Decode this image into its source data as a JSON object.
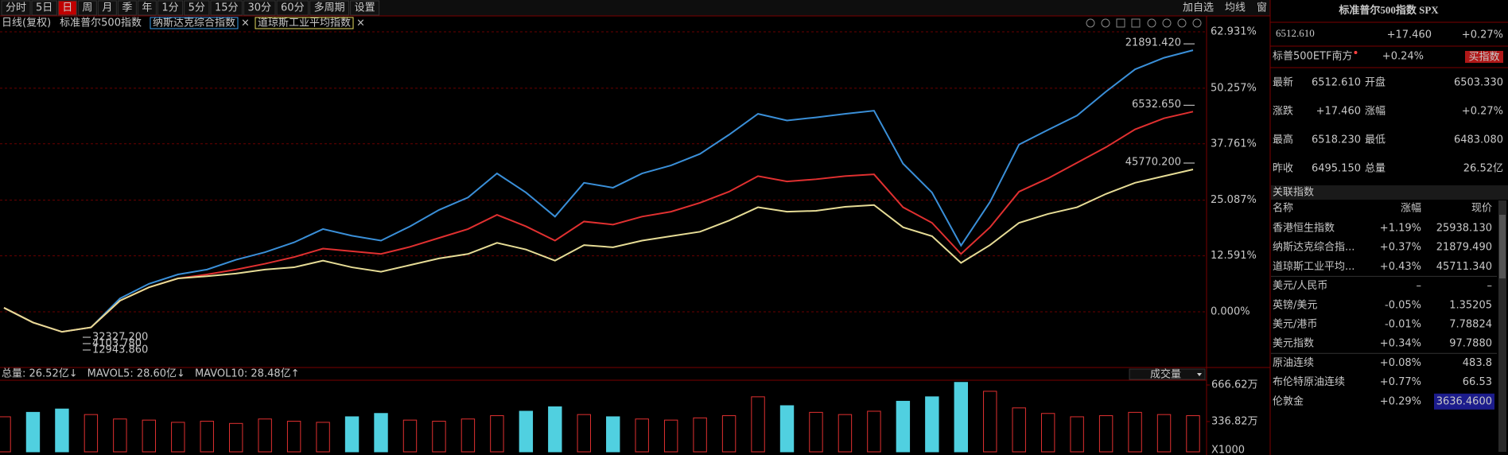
{
  "toolbar": {
    "periods": [
      "分时",
      "5日",
      "日",
      "周",
      "月",
      "季",
      "年",
      "1分",
      "5分",
      "15分",
      "30分",
      "60分",
      "多周期",
      "设置"
    ],
    "actions": [
      "加自选",
      "均线",
      "窗"
    ]
  },
  "legend": {
    "mode": "日线(复权)"
  },
  "chart_data": {
    "type": "line",
    "series": [
      {
        "name": "标准普尔500指数",
        "color": "#e03030",
        "label_color": "#c8c8c8",
        "high_label": "6532.650",
        "low_label": "4103.780",
        "values": [
          0.9,
          -2.4,
          -4.5,
          -3.5,
          2.5,
          5.5,
          7.5,
          8.4,
          9.5,
          10.8,
          12.3,
          14.2,
          13.6,
          13.0,
          14.6,
          16.6,
          18.6,
          21.8,
          19.2,
          16.0,
          20.3,
          19.6,
          21.4,
          22.5,
          24.5,
          27.0,
          30.5,
          29.3,
          29.8,
          30.5,
          30.9,
          23.5,
          20.0,
          13.0,
          19.0,
          27.0,
          30.0,
          33.5,
          37.0,
          41.0,
          43.5,
          45.0
        ]
      },
      {
        "name": "纳斯达克综合指数",
        "color": "#3a8fd8",
        "label_color": "#3a9be8",
        "high_label": "21891.420",
        "low_label": "12943.860",
        "values": [
          0.9,
          -2.4,
          -4.5,
          -3.5,
          3.0,
          6.3,
          8.4,
          9.5,
          11.7,
          13.4,
          15.6,
          18.6,
          17.1,
          16.0,
          19.2,
          22.9,
          25.7,
          31.1,
          26.8,
          21.4,
          29.0,
          27.9,
          31.1,
          32.9,
          35.5,
          39.8,
          44.5,
          43.0,
          43.7,
          44.5,
          45.2,
          33.3,
          26.8,
          14.9,
          24.7,
          37.6,
          40.9,
          44.1,
          49.5,
          54.5,
          57.1,
          58.8
        ]
      },
      {
        "name": "道琼斯工业平均指数",
        "color": "#e6dc96",
        "label_color": "#e6dc60",
        "high_label": "45770.200",
        "low_label": "32327.200",
        "values": [
          0.9,
          -2.4,
          -4.5,
          -3.5,
          2.5,
          5.5,
          7.5,
          8.0,
          8.6,
          9.5,
          10.0,
          11.5,
          10.0,
          9.0,
          10.5,
          12.0,
          13.0,
          15.5,
          14.0,
          11.5,
          15.0,
          14.5,
          16.0,
          17.0,
          18.0,
          20.5,
          23.5,
          22.5,
          22.7,
          23.6,
          24.0,
          19.0,
          17.0,
          11.0,
          15.0,
          20.0,
          22.0,
          23.5,
          26.5,
          29.0,
          30.5,
          32.0
        ]
      }
    ],
    "ylim": [
      -12.16,
      63.29
    ],
    "yticks": [
      {
        "value": 0,
        "label": "0.000%"
      },
      {
        "value": 12.591,
        "label": "12.591%"
      },
      {
        "value": 25.087,
        "label": "25.087%"
      },
      {
        "value": 37.761,
        "label": "37.761%"
      },
      {
        "value": 50.257,
        "label": "50.257%"
      },
      {
        "value": 62.931,
        "label": "62.931%"
      }
    ],
    "grid": true
  },
  "volume": {
    "type": "bar",
    "legend": [
      {
        "text": "总量: 26.52亿↓",
        "color": "#ff4040"
      },
      {
        "text": "MAVOL5: 28.60亿↓",
        "color": "#f0e060"
      },
      {
        "text": "MAVOL10: 28.48亿↑",
        "color": "#e0e0e0"
      }
    ],
    "indicator": "成交量",
    "values": [
      380,
      420,
      450,
      400,
      360,
      350,
      330,
      340,
      320,
      360,
      340,
      330,
      380,
      410,
      350,
      340,
      360,
      390,
      430,
      470,
      400,
      380,
      360,
      350,
      370,
      390,
      560,
      480,
      420,
      400,
      430,
      520,
      560,
      690,
      610,
      460,
      410,
      380,
      390,
      420,
      400,
      390
    ],
    "ylim": [
      64,
      709.6
    ],
    "yticks": [
      {
        "value": 336.82,
        "label": "336.82万"
      },
      {
        "value": 666.62,
        "label": "666.62万"
      }
    ],
    "unit": "X1000"
  },
  "quote": {
    "title": "标准普尔500指数 SPX",
    "price": "6512.610",
    "change": "+17.460",
    "change_pct": "+0.27%",
    "etf": {
      "name": "标普500ETF南方",
      "change_pct": "+0.24%",
      "button": "买指数"
    },
    "stats": [
      {
        "label": "最新",
        "value": "6512.610",
        "color": "#ff4040"
      },
      {
        "label": "开盘",
        "value": "6503.330",
        "color": "#ff4040"
      },
      {
        "label": "涨跌",
        "value": "+17.460",
        "color": "#ff4040"
      },
      {
        "label": "涨幅",
        "value": "+0.27%",
        "color": "#ff4040"
      },
      {
        "label": "最高",
        "value": "6518.230",
        "color": "#ff4040"
      },
      {
        "label": "最低",
        "value": "6483.080",
        "color": "#00e600"
      },
      {
        "label": "昨收",
        "value": "6495.150",
        "color": "#e0e0e0"
      },
      {
        "label": "总量",
        "value": "26.52亿",
        "color": "#40e0e0"
      }
    ],
    "related": {
      "title": "关联指数",
      "columns": [
        "名称",
        "涨幅",
        "现价"
      ],
      "rows": [
        {
          "name": "香港恒生指数",
          "change": "+1.19%",
          "price": "25938.130",
          "color": "#ff4040"
        },
        {
          "name": "纳斯达克综合指...",
          "change": "+0.37%",
          "price": "21879.490",
          "color": "#ff4040"
        },
        {
          "name": "道琼斯工业平均...",
          "change": "+0.43%",
          "price": "45711.340",
          "color": "#ff4040"
        },
        {
          "name": "美元/人民币",
          "change": "–",
          "price": "–",
          "color": "#c0c0c0"
        },
        {
          "name": "英镑/美元",
          "change": "-0.05%",
          "price": "1.35205",
          "color": "#00e600"
        },
        {
          "name": "美元/港币",
          "change": "-0.01%",
          "price": "7.78824",
          "color": "#00e600"
        },
        {
          "name": "美元指数",
          "change": "+0.34%",
          "price": "97.7880",
          "color": "#ff4040"
        },
        {
          "name": "原油连续",
          "change": "+0.08%",
          "price": "483.8",
          "color": "#ff4040"
        },
        {
          "name": "布伦特原油连续",
          "change": "+0.77%",
          "price": "66.53",
          "color": "#ff4040"
        },
        {
          "name": "伦敦金",
          "change": "+0.29%",
          "price": "3636.4600",
          "color": "#ff4040"
        }
      ]
    }
  }
}
